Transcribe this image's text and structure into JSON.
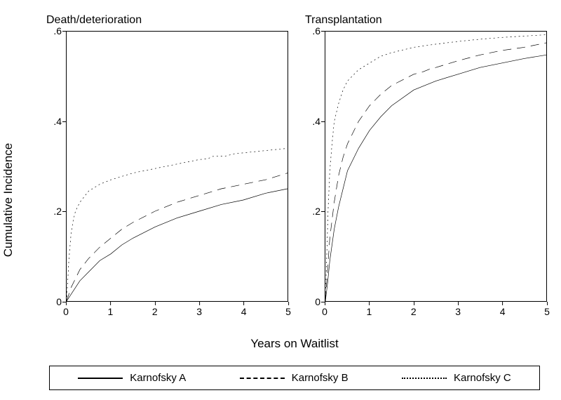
{
  "y_axis_label": "Cumulative Incidence",
  "x_axis_label": "Years on Waitlist",
  "axis": {
    "xlim": [
      0,
      5
    ],
    "ylim": [
      0,
      0.6
    ],
    "xtick_step": 1,
    "ytick_step": 0.2,
    "xticks": [
      0,
      1,
      2,
      3,
      4,
      5
    ],
    "ytick_labels": [
      "0",
      ".2",
      ".4",
      ".6"
    ],
    "ytick_values": [
      0,
      0.2,
      0.4,
      0.6
    ],
    "label_fontsize": 17,
    "tick_fontsize": 14,
    "line_color": "#000000",
    "line_width": 1,
    "background_color": "#ffffff"
  },
  "series_styles": {
    "karnofsky_a": {
      "stroke": "#000000",
      "stroke_width": 2,
      "dash": "none",
      "style": "solid"
    },
    "karnofsky_b": {
      "stroke": "#000000",
      "stroke_width": 2,
      "dash": "12 8",
      "style": "dashed"
    },
    "karnofsky_c": {
      "stroke": "#000000",
      "stroke_width": 2,
      "dash": "2 4",
      "style": "dotted"
    }
  },
  "panels": [
    {
      "title": "Death/deterioration",
      "series": {
        "karnofsky_a": [
          [
            0,
            0
          ],
          [
            0.1,
            0.015
          ],
          [
            0.2,
            0.03
          ],
          [
            0.3,
            0.045
          ],
          [
            0.5,
            0.065
          ],
          [
            0.75,
            0.09
          ],
          [
            1,
            0.105
          ],
          [
            1.25,
            0.125
          ],
          [
            1.5,
            0.14
          ],
          [
            2,
            0.165
          ],
          [
            2.5,
            0.185
          ],
          [
            3,
            0.2
          ],
          [
            3.5,
            0.215
          ],
          [
            4,
            0.225
          ],
          [
            4.5,
            0.24
          ],
          [
            5,
            0.25
          ]
        ],
        "karnofsky_b": [
          [
            0,
            0
          ],
          [
            0.1,
            0.03
          ],
          [
            0.2,
            0.05
          ],
          [
            0.3,
            0.07
          ],
          [
            0.5,
            0.095
          ],
          [
            0.75,
            0.12
          ],
          [
            1,
            0.14
          ],
          [
            1.25,
            0.16
          ],
          [
            1.5,
            0.175
          ],
          [
            2,
            0.2
          ],
          [
            2.5,
            0.22
          ],
          [
            3,
            0.235
          ],
          [
            3.5,
            0.25
          ],
          [
            4,
            0.26
          ],
          [
            4.5,
            0.27
          ],
          [
            5,
            0.285
          ]
        ],
        "karnofsky_c": [
          [
            0,
            0
          ],
          [
            0.05,
            0.09
          ],
          [
            0.1,
            0.15
          ],
          [
            0.15,
            0.18
          ],
          [
            0.2,
            0.2
          ],
          [
            0.3,
            0.22
          ],
          [
            0.5,
            0.245
          ],
          [
            0.75,
            0.26
          ],
          [
            1,
            0.27
          ],
          [
            1.5,
            0.285
          ],
          [
            2,
            0.295
          ],
          [
            2.5,
            0.305
          ],
          [
            3,
            0.315
          ],
          [
            3.2,
            0.317
          ],
          [
            3.3,
            0.322
          ],
          [
            3.6,
            0.323
          ],
          [
            3.8,
            0.328
          ],
          [
            4,
            0.33
          ],
          [
            4.5,
            0.335
          ],
          [
            5,
            0.34
          ]
        ]
      }
    },
    {
      "title": "Transplantation",
      "series": {
        "karnofsky_a": [
          [
            0,
            0
          ],
          [
            0.05,
            0.04
          ],
          [
            0.1,
            0.09
          ],
          [
            0.2,
            0.16
          ],
          [
            0.3,
            0.21
          ],
          [
            0.4,
            0.25
          ],
          [
            0.5,
            0.29
          ],
          [
            0.75,
            0.34
          ],
          [
            1,
            0.38
          ],
          [
            1.25,
            0.41
          ],
          [
            1.5,
            0.435
          ],
          [
            2,
            0.47
          ],
          [
            2.5,
            0.49
          ],
          [
            3,
            0.505
          ],
          [
            3.5,
            0.52
          ],
          [
            4,
            0.53
          ],
          [
            4.5,
            0.54
          ],
          [
            5,
            0.548
          ]
        ],
        "karnofsky_b": [
          [
            0,
            0
          ],
          [
            0.05,
            0.07
          ],
          [
            0.1,
            0.14
          ],
          [
            0.2,
            0.22
          ],
          [
            0.3,
            0.28
          ],
          [
            0.4,
            0.32
          ],
          [
            0.5,
            0.35
          ],
          [
            0.75,
            0.4
          ],
          [
            1,
            0.435
          ],
          [
            1.25,
            0.46
          ],
          [
            1.5,
            0.48
          ],
          [
            2,
            0.505
          ],
          [
            2.2,
            0.51
          ],
          [
            2.4,
            0.518
          ],
          [
            2.5,
            0.52
          ],
          [
            3,
            0.535
          ],
          [
            3.5,
            0.548
          ],
          [
            4,
            0.558
          ],
          [
            4.5,
            0.565
          ],
          [
            5,
            0.575
          ]
        ],
        "karnofsky_c": [
          [
            0,
            0
          ],
          [
            0.03,
            0.1
          ],
          [
            0.06,
            0.2
          ],
          [
            0.1,
            0.29
          ],
          [
            0.15,
            0.35
          ],
          [
            0.2,
            0.4
          ],
          [
            0.3,
            0.44
          ],
          [
            0.4,
            0.47
          ],
          [
            0.5,
            0.49
          ],
          [
            0.75,
            0.515
          ],
          [
            1,
            0.53
          ],
          [
            1.25,
            0.545
          ],
          [
            1.5,
            0.553
          ],
          [
            2,
            0.565
          ],
          [
            2.5,
            0.572
          ],
          [
            3,
            0.578
          ],
          [
            3.5,
            0.583
          ],
          [
            4,
            0.587
          ],
          [
            4.5,
            0.59
          ],
          [
            5,
            0.593
          ]
        ]
      }
    }
  ],
  "legend": {
    "items": [
      {
        "key": "karnofsky_a",
        "label": "Karnofsky A"
      },
      {
        "key": "karnofsky_b",
        "label": "Karnofsky B"
      },
      {
        "key": "karnofsky_c",
        "label": "Karnofsky C"
      }
    ],
    "border_color": "#000000",
    "fontsize": 15
  }
}
